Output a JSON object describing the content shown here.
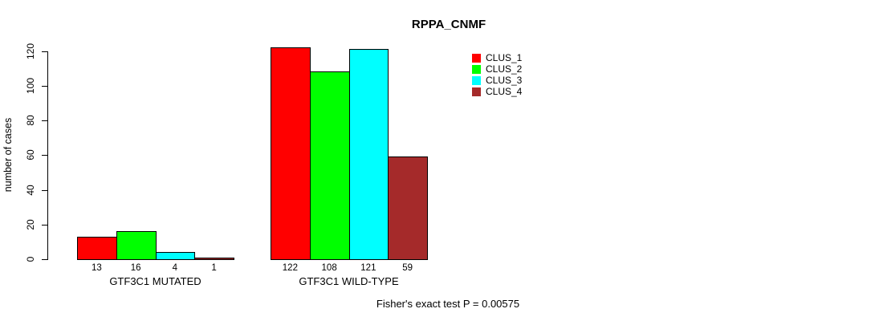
{
  "title": "RPPA_CNMF",
  "ylabel": "number of cases",
  "footer": "Fisher's exact test P = 0.00575",
  "accent_colors": {
    "clus_1": "#FF0000",
    "clus_2": "#00FF00",
    "clus_3": "#00FFFF",
    "clus_4": "#A52A2A",
    "axis": "#000000"
  },
  "legend": {
    "position": "top-right",
    "items": [
      {
        "label": "CLUS_1",
        "color": "#FF0000"
      },
      {
        "label": "CLUS_2",
        "color": "#00FF00"
      },
      {
        "label": "CLUS_3",
        "color": "#00FFFF"
      },
      {
        "label": "CLUS_4",
        "color": "#A52A2A"
      }
    ]
  },
  "chart_data": {
    "type": "bar",
    "title": "RPPA_CNMF",
    "xlabel": "",
    "ylabel": "number of cases",
    "ylim": [
      0,
      120
    ],
    "yticks": [
      0,
      20,
      40,
      60,
      80,
      100,
      120
    ],
    "grid": false,
    "legend_position": "top-right",
    "series_names": [
      "CLUS_1",
      "CLUS_2",
      "CLUS_3",
      "CLUS_4"
    ],
    "series_colors": [
      "#FF0000",
      "#00FF00",
      "#00FFFF",
      "#A52A2A"
    ],
    "groups": [
      {
        "label": "GTF3C1 MUTATED",
        "values": [
          13,
          16,
          4,
          1
        ],
        "value_labels": [
          "13",
          "16",
          "4",
          "1"
        ]
      },
      {
        "label": "GTF3C1 WILD-TYPE",
        "values": [
          122,
          108,
          121,
          59
        ],
        "value_labels": [
          "122",
          "108",
          "121",
          "59"
        ]
      }
    ],
    "annotation": "Fisher's exact test P = 0.00575"
  }
}
